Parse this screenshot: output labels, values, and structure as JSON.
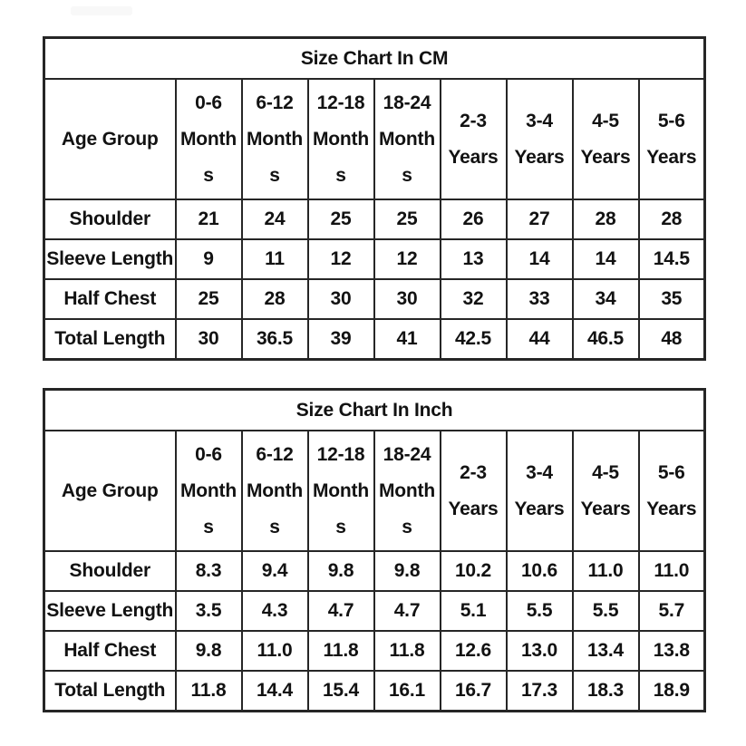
{
  "page_title": "Size Chart",
  "tables": [
    {
      "id": "cm",
      "title": "Size Chart In CM",
      "corner_label": "Age Group",
      "columns": [
        {
          "label": "0-6 Months",
          "lines": [
            "0-6",
            "Month",
            "s"
          ]
        },
        {
          "label": "6-12 Months",
          "lines": [
            "6-12",
            "Month",
            "s"
          ]
        },
        {
          "label": "12-18 Months",
          "lines": [
            "12-18",
            "Month",
            "s"
          ]
        },
        {
          "label": "18-24 Months",
          "lines": [
            "18-24",
            "Month",
            "s"
          ]
        },
        {
          "label": "2-3 Years",
          "lines": [
            "2-3",
            "Years"
          ]
        },
        {
          "label": "3-4 Years",
          "lines": [
            "3-4",
            "Years"
          ]
        },
        {
          "label": "4-5 Years",
          "lines": [
            "4-5",
            "Years"
          ]
        },
        {
          "label": "5-6 Years",
          "lines": [
            "5-6",
            "Years"
          ]
        }
      ],
      "rows": [
        {
          "label": "Shoulder",
          "values": [
            "21",
            "24",
            "25",
            "25",
            "26",
            "27",
            "28",
            "28"
          ]
        },
        {
          "label": "Sleeve Length",
          "values": [
            "9",
            "11",
            "12",
            "12",
            "13",
            "14",
            "14",
            "14.5"
          ]
        },
        {
          "label": "Half Chest",
          "values": [
            "25",
            "28",
            "30",
            "30",
            "32",
            "33",
            "34",
            "35"
          ]
        },
        {
          "label": "Total Length",
          "values": [
            "30",
            "36.5",
            "39",
            "41",
            "42.5",
            "44",
            "46.5",
            "48"
          ]
        }
      ]
    },
    {
      "id": "inch",
      "title": "Size Chart In Inch",
      "corner_label": "Age Group",
      "columns": [
        {
          "label": "0-6 Months",
          "lines": [
            "0-6",
            "Month",
            "s"
          ]
        },
        {
          "label": "6-12 Months",
          "lines": [
            "6-12",
            "Month",
            "s"
          ]
        },
        {
          "label": "12-18 Months",
          "lines": [
            "12-18",
            "Month",
            "s"
          ]
        },
        {
          "label": "18-24 Months",
          "lines": [
            "18-24",
            "Month",
            "s"
          ]
        },
        {
          "label": "2-3 Years",
          "lines": [
            "2-3",
            "Years"
          ]
        },
        {
          "label": "3-4 Years",
          "lines": [
            "3-4",
            "Years"
          ]
        },
        {
          "label": "4-5 Years",
          "lines": [
            "4-5",
            "Years"
          ]
        },
        {
          "label": "5-6 Years",
          "lines": [
            "5-6",
            "Years"
          ]
        }
      ],
      "rows": [
        {
          "label": "Shoulder",
          "values": [
            "8.3",
            "9.4",
            "9.8",
            "9.8",
            "10.2",
            "10.6",
            "11.0",
            "11.0"
          ]
        },
        {
          "label": "Sleeve Length",
          "values": [
            "3.5",
            "4.3",
            "4.7",
            "4.7",
            "5.1",
            "5.5",
            "5.5",
            "5.7"
          ]
        },
        {
          "label": "Half Chest",
          "values": [
            "9.8",
            "11.0",
            "11.8",
            "11.8",
            "12.6",
            "13.0",
            "13.4",
            "13.8"
          ]
        },
        {
          "label": "Total Length",
          "values": [
            "11.8",
            "14.4",
            "15.4",
            "16.1",
            "16.7",
            "17.3",
            "18.3",
            "18.9"
          ]
        }
      ]
    }
  ],
  "chart_data": [
    {
      "type": "table",
      "title": "Size Chart In CM",
      "columns": [
        "Age Group",
        "0-6 Months",
        "6-12 Months",
        "12-18 Months",
        "18-24 Months",
        "2-3 Years",
        "3-4 Years",
        "4-5 Years",
        "5-6 Years"
      ],
      "rows": [
        [
          "Shoulder",
          21,
          24,
          25,
          25,
          26,
          27,
          28,
          28
        ],
        [
          "Sleeve Length",
          9,
          11,
          12,
          12,
          13,
          14,
          14,
          14.5
        ],
        [
          "Half Chest",
          25,
          28,
          30,
          30,
          32,
          33,
          34,
          35
        ],
        [
          "Total Length",
          30,
          36.5,
          39,
          41,
          42.5,
          44,
          46.5,
          48
        ]
      ]
    },
    {
      "type": "table",
      "title": "Size Chart In Inch",
      "columns": [
        "Age Group",
        "0-6 Months",
        "6-12 Months",
        "12-18 Months",
        "18-24 Months",
        "2-3 Years",
        "3-4 Years",
        "4-5 Years",
        "5-6 Years"
      ],
      "rows": [
        [
          "Shoulder",
          8.3,
          9.4,
          9.8,
          9.8,
          10.2,
          10.6,
          11.0,
          11.0
        ],
        [
          "Sleeve Length",
          3.5,
          4.3,
          4.7,
          4.7,
          5.1,
          5.5,
          5.5,
          5.7
        ],
        [
          "Half Chest",
          9.8,
          11.0,
          11.8,
          11.8,
          12.6,
          13.0,
          13.4,
          13.8
        ],
        [
          "Total Length",
          11.8,
          14.4,
          15.4,
          16.1,
          16.7,
          17.3,
          18.3,
          18.9
        ]
      ]
    }
  ],
  "colors": {
    "border": "#262626",
    "text": "#121212",
    "background": "#ffffff"
  }
}
